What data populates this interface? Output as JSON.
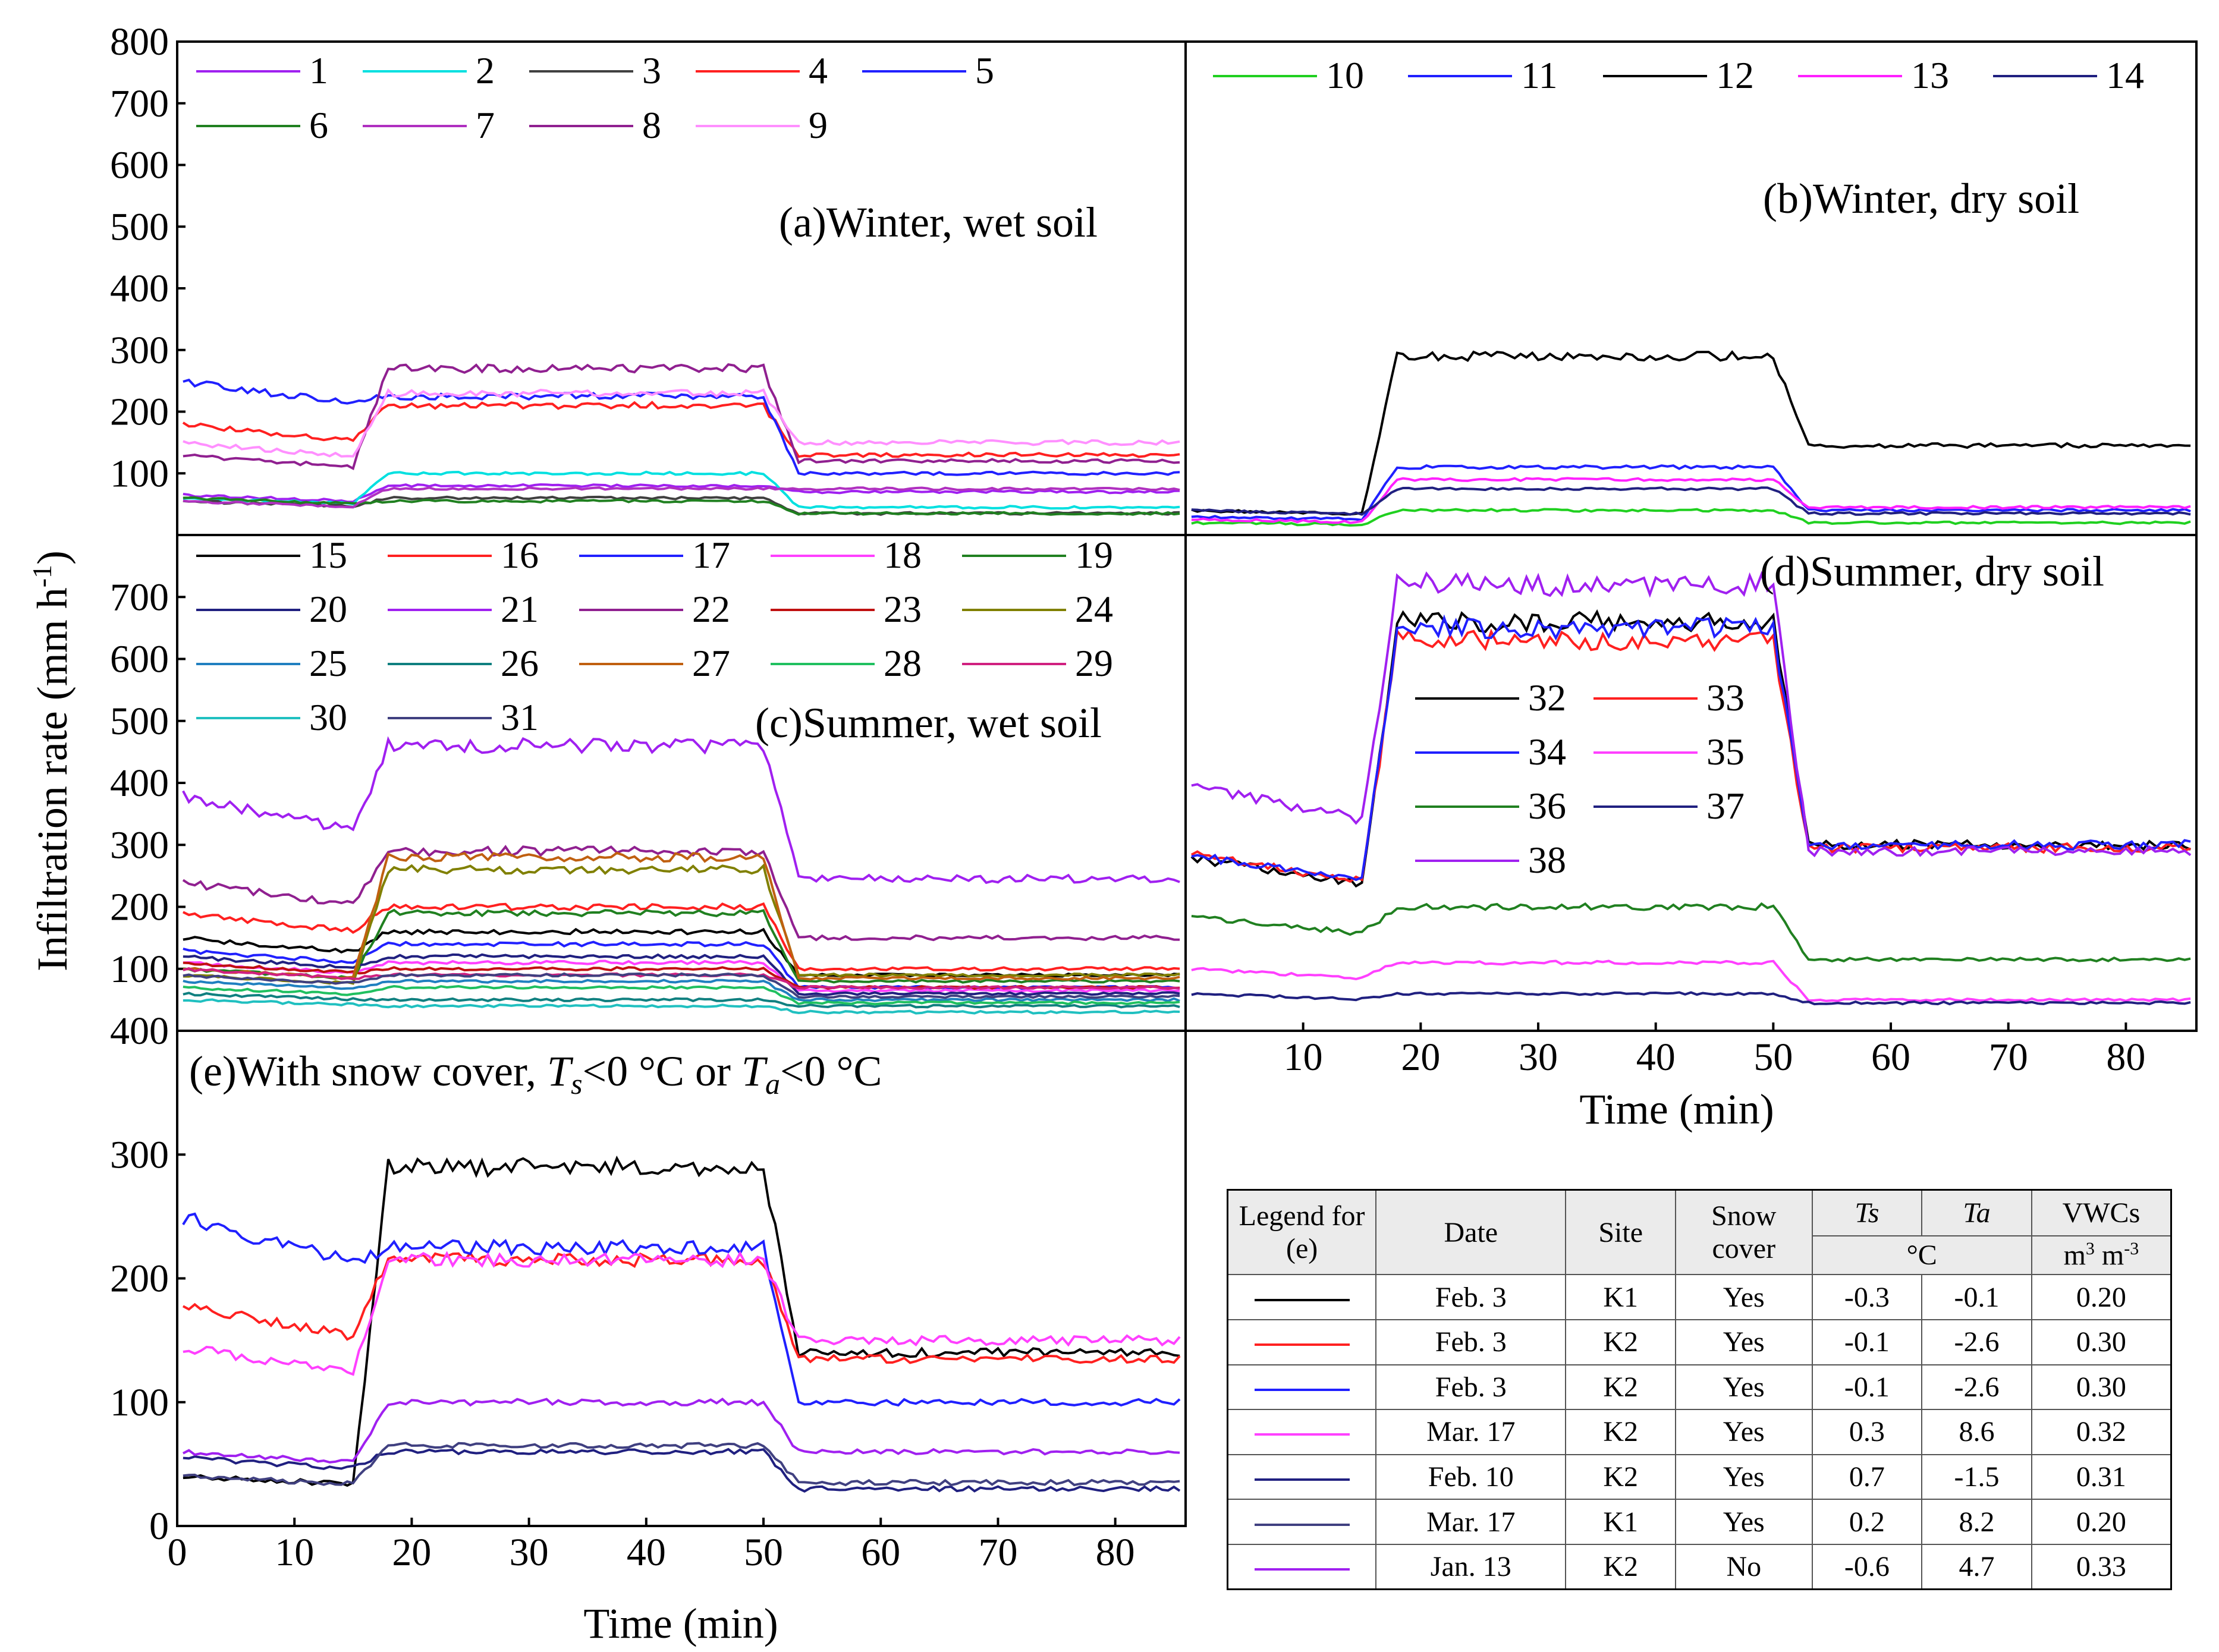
{
  "chart_data": [
    {
      "panel": "a",
      "type": "line",
      "title": "(a)Winter, wet soil",
      "xlim": [
        0,
        86
      ],
      "ylim": [
        0,
        800
      ],
      "yticks": [
        100,
        200,
        300,
        400,
        500,
        600,
        700,
        800
      ],
      "ytick_labels": [
        "100",
        "200",
        "300",
        "400",
        "500",
        "600",
        "700",
        "800"
      ],
      "series": [
        {
          "name": "1",
          "color": "#a020f0",
          "y0": 65,
          "mid": 80,
          "late": 70
        },
        {
          "name": "2",
          "color": "#00e0e0",
          "y0": 60,
          "mid": 100,
          "late": 45
        },
        {
          "name": "3",
          "color": "#404040",
          "y0": 55,
          "mid": 60,
          "late": 35
        },
        {
          "name": "4",
          "color": "#ff2020",
          "y0": 180,
          "mid": 210,
          "late": 130
        },
        {
          "name": "5",
          "color": "#2020ff",
          "y0": 250,
          "mid": 225,
          "late": 100
        },
        {
          "name": "6",
          "color": "#208020",
          "y0": 60,
          "mid": 55,
          "late": 35
        },
        {
          "name": "7",
          "color": "#b030c0",
          "y0": 55,
          "mid": 75,
          "late": 75
        },
        {
          "name": "8",
          "color": "#902090",
          "y0": 130,
          "mid": 270,
          "late": 120
        },
        {
          "name": "9",
          "color": "#ff90ff",
          "y0": 150,
          "mid": 230,
          "late": 150
        }
      ]
    },
    {
      "panel": "b",
      "type": "line",
      "title": "(b)Winter, dry soil",
      "xlim": [
        0,
        86
      ],
      "ylim": [
        0,
        800
      ],
      "series": [
        {
          "name": "10",
          "color": "#20d020",
          "y0": 20,
          "mid": 40,
          "late": 20
        },
        {
          "name": "11",
          "color": "#2020ff",
          "y0": 30,
          "mid": 110,
          "late": 40
        },
        {
          "name": "12",
          "color": "#000000",
          "y0": 40,
          "mid": 290,
          "late": 145
        },
        {
          "name": "13",
          "color": "#ff20ff",
          "y0": 25,
          "mid": 90,
          "late": 45
        },
        {
          "name": "14",
          "color": "#202080",
          "y0": 40,
          "mid": 75,
          "late": 35
        }
      ]
    },
    {
      "panel": "c",
      "type": "line",
      "title": "(c)Summer, wet soil",
      "xlim": [
        0,
        86
      ],
      "ylim": [
        0,
        800
      ],
      "yticks": [
        100,
        200,
        300,
        400,
        500,
        600,
        700
      ],
      "ytick_labels": [
        "100",
        "200",
        "300",
        "400",
        "500",
        "600",
        "700"
      ],
      "series": [
        {
          "name": "15",
          "color": "#000000",
          "y0": 150,
          "mid": 160,
          "late": 90
        },
        {
          "name": "16",
          "color": "#ff2020",
          "y0": 190,
          "mid": 200,
          "late": 100
        },
        {
          "name": "17",
          "color": "#2020ff",
          "y0": 130,
          "mid": 140,
          "late": 70
        },
        {
          "name": "18",
          "color": "#ff40ff",
          "y0": 110,
          "mid": 110,
          "late": 65
        },
        {
          "name": "19",
          "color": "#208020",
          "y0": 100,
          "mid": 190,
          "late": 80
        },
        {
          "name": "20",
          "color": "#202080",
          "y0": 120,
          "mid": 120,
          "late": 60
        },
        {
          "name": "21",
          "color": "#a020f0",
          "y0": 380,
          "mid": 460,
          "late": 245
        },
        {
          "name": "22",
          "color": "#902090",
          "y0": 240,
          "mid": 290,
          "late": 150
        },
        {
          "name": "23",
          "color": "#c01010",
          "y0": 110,
          "mid": 100,
          "late": 70
        },
        {
          "name": "24",
          "color": "#808000",
          "y0": 90,
          "mid": 260,
          "late": 90
        },
        {
          "name": "25",
          "color": "#2080c0",
          "y0": 80,
          "mid": 80,
          "late": 50
        },
        {
          "name": "26",
          "color": "#108080",
          "y0": 60,
          "mid": 50,
          "late": 40
        },
        {
          "name": "27",
          "color": "#c06010",
          "y0": 100,
          "mid": 280,
          "late": 85
        },
        {
          "name": "28",
          "color": "#20c060",
          "y0": 70,
          "mid": 70,
          "late": 45
        },
        {
          "name": "29",
          "color": "#d02080",
          "y0": 100,
          "mid": 90,
          "late": 70
        },
        {
          "name": "30",
          "color": "#20c0c0",
          "y0": 50,
          "mid": 40,
          "late": 30
        },
        {
          "name": "31",
          "color": "#404080",
          "y0": 90,
          "mid": 90,
          "late": 55
        }
      ]
    },
    {
      "panel": "d",
      "type": "line",
      "title": "(d)Summer, dry soil",
      "xlabel": "Time (min)",
      "xlim": [
        0,
        86
      ],
      "ylim": [
        0,
        800
      ],
      "xticks": [
        10,
        20,
        30,
        40,
        50,
        60,
        70,
        80
      ],
      "xtick_labels": [
        "10",
        "20",
        "30",
        "40",
        "50",
        "60",
        "70",
        "80"
      ],
      "series": [
        {
          "name": "32",
          "color": "#000000",
          "y0": 280,
          "mid": 660,
          "late": 300
        },
        {
          "name": "33",
          "color": "#ff2020",
          "y0": 285,
          "mid": 630,
          "late": 295
        },
        {
          "name": "34",
          "color": "#2020ff",
          "y0": 285,
          "mid": 650,
          "late": 300
        },
        {
          "name": "35",
          "color": "#ff40ff",
          "y0": 100,
          "mid": 110,
          "late": 50
        },
        {
          "name": "36",
          "color": "#208020",
          "y0": 185,
          "mid": 200,
          "late": 115
        },
        {
          "name": "37",
          "color": "#202080",
          "y0": 60,
          "mid": 60,
          "late": 45
        },
        {
          "name": "38",
          "color": "#a020f0",
          "y0": 400,
          "mid": 720,
          "late": 290
        }
      ]
    },
    {
      "panel": "e",
      "type": "line",
      "title_prefix": "(e)With snow cover, ",
      "title_ts": "T",
      "title_ts_sub": "s",
      "title_mid": "<0 °C or ",
      "title_ta": "T",
      "title_ta_sub": "a",
      "title_suffix": "<0 °C",
      "xlabel": "Time (min)",
      "xlim": [
        0,
        86
      ],
      "ylim": [
        0,
        400
      ],
      "xticks": [
        0,
        10,
        20,
        30,
        40,
        50,
        60,
        70,
        80
      ],
      "xtick_labels": [
        "0",
        "10",
        "20",
        "30",
        "40",
        "50",
        "60",
        "70",
        "80"
      ],
      "yticks": [
        0,
        100,
        200,
        300,
        400
      ],
      "ytick_labels": [
        "0",
        "100",
        "200",
        "300",
        "400"
      ],
      "series": [
        {
          "name": "Feb. 3 K1",
          "color": "#000000",
          "y0": 40,
          "mid": 290,
          "late": 140
        },
        {
          "name": "Feb. 3 K2 (a)",
          "color": "#ff2020",
          "y0": 180,
          "mid": 215,
          "late": 135
        },
        {
          "name": "Feb. 3 K2 (b)",
          "color": "#2020ff",
          "y0": 250,
          "mid": 225,
          "late": 100
        },
        {
          "name": "Mar. 17 K2",
          "color": "#ff40ff",
          "y0": 145,
          "mid": 215,
          "late": 150
        },
        {
          "name": "Feb. 10 K2",
          "color": "#202080",
          "y0": 55,
          "mid": 60,
          "late": 30
        },
        {
          "name": "Mar. 17 K1",
          "color": "#404080",
          "y0": 40,
          "mid": 65,
          "late": 35
        },
        {
          "name": "Jan. 13 K2",
          "color": "#a020f0",
          "y0": 60,
          "mid": 100,
          "late": 60
        }
      ]
    }
  ],
  "y_axis_title": "Infiltration rate (mm h",
  "y_axis_title_sup": "-1",
  "y_axis_title_end": ")",
  "legend_table": {
    "headers": {
      "legend": "Legend for (e)",
      "date": "Date",
      "site": "Site",
      "snow": "Snow cover",
      "ts": "Ts",
      "ta": "Ta",
      "vwc": "VWCs",
      "unit_c": "°C",
      "unit_vwc": "m",
      "unit_vwc_sup1": "3",
      "unit_vwc_mid": " m",
      "unit_vwc_sup2": "-3"
    },
    "rows": [
      {
        "color": "#000000",
        "date": "Feb. 3",
        "site": "K1",
        "snow": "Yes",
        "ts": "-0.3",
        "ta": "-0.1",
        "vwc": "0.20"
      },
      {
        "color": "#ff2020",
        "date": "Feb. 3",
        "site": "K2",
        "snow": "Yes",
        "ts": "-0.1",
        "ta": "-2.6",
        "vwc": "0.30"
      },
      {
        "color": "#2020ff",
        "date": "Feb. 3",
        "site": "K2",
        "snow": "Yes",
        "ts": "-0.1",
        "ta": "-2.6",
        "vwc": "0.30"
      },
      {
        "color": "#ff40ff",
        "date": "Mar. 17",
        "site": "K2",
        "snow": "Yes",
        "ts": "0.3",
        "ta": "8.6",
        "vwc": "0.32"
      },
      {
        "color": "#202080",
        "date": "Feb. 10",
        "site": "K2",
        "snow": "Yes",
        "ts": "0.7",
        "ta": "-1.5",
        "vwc": "0.31"
      },
      {
        "color": "#404080",
        "date": "Mar. 17",
        "site": "K1",
        "snow": "Yes",
        "ts": "0.2",
        "ta": "8.2",
        "vwc": "0.20"
      },
      {
        "color": "#a020f0",
        "date": "Jan. 13",
        "site": "K2",
        "snow": "No",
        "ts": "-0.6",
        "ta": "4.7",
        "vwc": "0.33"
      }
    ]
  }
}
